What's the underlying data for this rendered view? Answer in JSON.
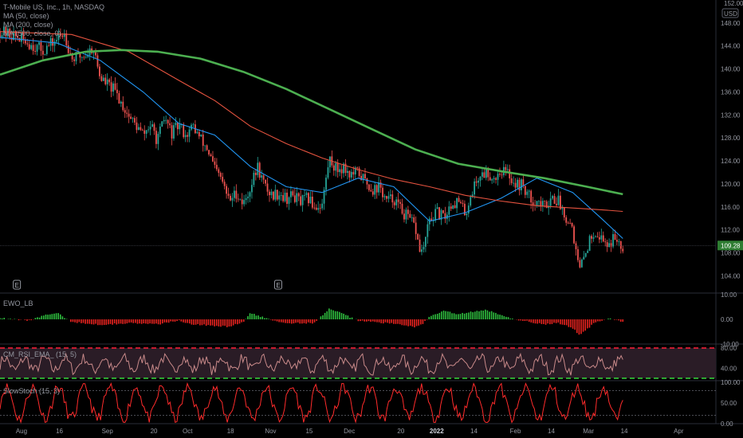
{
  "header": {
    "symbol_line": "T-Mobile US, Inc., 1h, NASDAQ",
    "ma_labels": [
      "MA (50, close)",
      "MA (200, close)",
      "MA (500, close, 0)"
    ],
    "currency": "USD",
    "top_price": "152.00"
  },
  "colors": {
    "up": "#26a69a",
    "down": "#ef5350",
    "ma50": "#2196f3",
    "ma200": "#e5533f",
    "ma500": "#4caf50",
    "ewo_up": "#2fbf3f",
    "ewo_down": "#e8231f",
    "rsi": "#c98a8a",
    "rsi_band": "#2a1c26",
    "stoch": "#ff2b2b",
    "last_price_bg": "#2e7d32"
  },
  "chart_data": [
    {
      "type": "line",
      "pane": "price",
      "title": "T-Mobile US, Inc., 1h, NASDAQ",
      "x": [
        "Aug",
        "16",
        "Sep",
        "20",
        "Oct",
        "18",
        "Nov",
        "15",
        "Dec",
        "20",
        "2022",
        "14",
        "Feb",
        "14",
        "Mar",
        "14",
        "Apr"
      ],
      "ylim": [
        101,
        152
      ],
      "yticks": [
        104,
        108,
        112,
        116,
        120,
        124,
        128,
        132,
        136,
        140,
        144,
        148
      ],
      "last_price": "109.28",
      "price_path": [
        [
          0,
          146.5
        ],
        [
          0.02,
          145.8
        ],
        [
          0.04,
          144.5
        ],
        [
          0.06,
          143.2
        ],
        [
          0.08,
          145.2
        ],
        [
          0.09,
          146.3
        ],
        [
          0.1,
          141.8
        ],
        [
          0.12,
          142.5
        ],
        [
          0.13,
          143.8
        ],
        [
          0.14,
          138.5
        ],
        [
          0.16,
          136.2
        ],
        [
          0.18,
          131.8
        ],
        [
          0.2,
          128.5
        ],
        [
          0.21,
          130.2
        ],
        [
          0.22,
          127.5
        ],
        [
          0.23,
          131.5
        ],
        [
          0.24,
          128.8
        ],
        [
          0.25,
          130.2
        ],
        [
          0.26,
          128.5
        ],
        [
          0.27,
          130.0
        ],
        [
          0.28,
          127.8
        ],
        [
          0.29,
          126.0
        ],
        [
          0.3,
          122.5
        ],
        [
          0.31,
          120.5
        ],
        [
          0.32,
          117.0
        ],
        [
          0.33,
          118.5
        ],
        [
          0.34,
          116.5
        ],
        [
          0.35,
          119.5
        ],
        [
          0.36,
          123.0
        ],
        [
          0.37,
          119.5
        ],
        [
          0.38,
          118.0
        ],
        [
          0.39,
          118.5
        ],
        [
          0.4,
          117.5
        ],
        [
          0.41,
          118.0
        ],
        [
          0.42,
          116.8
        ],
        [
          0.43,
          117.5
        ],
        [
          0.44,
          116.0
        ],
        [
          0.45,
          116.5
        ],
        [
          0.46,
          124.5
        ],
        [
          0.47,
          122.5
        ],
        [
          0.48,
          123.0
        ],
        [
          0.49,
          121.5
        ],
        [
          0.5,
          122.0
        ],
        [
          0.51,
          120.5
        ],
        [
          0.52,
          119.0
        ],
        [
          0.53,
          119.5
        ],
        [
          0.54,
          117.0
        ],
        [
          0.55,
          117.5
        ],
        [
          0.56,
          115.5
        ],
        [
          0.57,
          114.0
        ],
        [
          0.58,
          112.5
        ],
        [
          0.585,
          109.0
        ],
        [
          0.59,
          108.0
        ],
        [
          0.6,
          113.5
        ],
        [
          0.61,
          115.0
        ],
        [
          0.62,
          114.0
        ],
        [
          0.63,
          116.5
        ],
        [
          0.64,
          117.0
        ],
        [
          0.65,
          114.8
        ],
        [
          0.66,
          119.0
        ],
        [
          0.67,
          121.5
        ],
        [
          0.68,
          122.0
        ],
        [
          0.69,
          121.0
        ],
        [
          0.7,
          122.5
        ],
        [
          0.71,
          121.8
        ],
        [
          0.72,
          120.0
        ],
        [
          0.73,
          119.8
        ],
        [
          0.74,
          117.5
        ],
        [
          0.75,
          117.0
        ],
        [
          0.76,
          116.0
        ],
        [
          0.77,
          117.8
        ],
        [
          0.78,
          117.0
        ],
        [
          0.79,
          114.5
        ],
        [
          0.8,
          112.5
        ],
        [
          0.805,
          107.5
        ],
        [
          0.81,
          105.0
        ],
        [
          0.82,
          109.0
        ],
        [
          0.83,
          112.0
        ],
        [
          0.84,
          110.5
        ],
        [
          0.85,
          109.5
        ],
        [
          0.86,
          110.8
        ],
        [
          0.87,
          109.3
        ]
      ],
      "series": [
        {
          "name": "MA (50, close)",
          "values": [
            [
              0,
              145.5
            ],
            [
              0.08,
              144.5
            ],
            [
              0.14,
              141.5
            ],
            [
              0.2,
              136.0
            ],
            [
              0.25,
              130.5
            ],
            [
              0.3,
              128.5
            ],
            [
              0.35,
              123.0
            ],
            [
              0.4,
              119.5
            ],
            [
              0.45,
              118.5
            ],
            [
              0.5,
              121.0
            ],
            [
              0.55,
              119.5
            ],
            [
              0.6,
              113.5
            ],
            [
              0.65,
              115.0
            ],
            [
              0.7,
              117.5
            ],
            [
              0.75,
              121.0
            ],
            [
              0.8,
              118.5
            ],
            [
              0.84,
              114.0
            ],
            [
              0.87,
              110.5
            ]
          ]
        },
        {
          "name": "MA (200, close)",
          "values": [
            [
              0,
              146.5
            ],
            [
              0.1,
              146.0
            ],
            [
              0.18,
              143.0
            ],
            [
              0.25,
              138.0
            ],
            [
              0.3,
              134.5
            ],
            [
              0.35,
              130.0
            ],
            [
              0.4,
              127.0
            ],
            [
              0.45,
              124.5
            ],
            [
              0.5,
              122.5
            ],
            [
              0.55,
              120.8
            ],
            [
              0.6,
              119.5
            ],
            [
              0.65,
              118.0
            ],
            [
              0.7,
              117.0
            ],
            [
              0.75,
              116.2
            ],
            [
              0.8,
              115.8
            ],
            [
              0.84,
              115.5
            ],
            [
              0.87,
              115.2
            ]
          ]
        },
        {
          "name": "MA (500, close, 0)",
          "values": [
            [
              0,
              139.0
            ],
            [
              0.06,
              141.5
            ],
            [
              0.12,
              143.0
            ],
            [
              0.17,
              143.3
            ],
            [
              0.22,
              143.0
            ],
            [
              0.28,
              141.8
            ],
            [
              0.34,
              139.5
            ],
            [
              0.4,
              136.5
            ],
            [
              0.46,
              133.0
            ],
            [
              0.52,
              129.5
            ],
            [
              0.58,
              126.0
            ],
            [
              0.64,
              123.5
            ],
            [
              0.7,
              122.2
            ],
            [
              0.76,
              121.0
            ],
            [
              0.82,
              119.5
            ],
            [
              0.87,
              118.2
            ]
          ]
        }
      ]
    },
    {
      "type": "area",
      "pane": "ewo",
      "title": "EWO_LB",
      "ylim": [
        -10,
        10
      ],
      "yticks": [
        "10.00",
        "0.00",
        "-10.00"
      ],
      "values": [
        [
          0,
          0.5
        ],
        [
          0.04,
          -0.5
        ],
        [
          0.06,
          1.5
        ],
        [
          0.08,
          2.5
        ],
        [
          0.1,
          -1.0
        ],
        [
          0.14,
          -2.2
        ],
        [
          0.18,
          -1.5
        ],
        [
          0.22,
          -2.0
        ],
        [
          0.25,
          -0.5
        ],
        [
          0.27,
          -2.0
        ],
        [
          0.3,
          -2.6
        ],
        [
          0.32,
          -3.0
        ],
        [
          0.34,
          -1.0
        ],
        [
          0.35,
          2.5
        ],
        [
          0.37,
          0.5
        ],
        [
          0.4,
          -1.5
        ],
        [
          0.44,
          -1.5
        ],
        [
          0.46,
          4.5
        ],
        [
          0.48,
          2.0
        ],
        [
          0.5,
          -0.5
        ],
        [
          0.54,
          -1.5
        ],
        [
          0.58,
          -3.0
        ],
        [
          0.59,
          -2.0
        ],
        [
          0.6,
          1.0
        ],
        [
          0.62,
          3.5
        ],
        [
          0.64,
          2.0
        ],
        [
          0.66,
          3.0
        ],
        [
          0.68,
          3.8
        ],
        [
          0.7,
          1.5
        ],
        [
          0.72,
          0.0
        ],
        [
          0.74,
          -1.0
        ],
        [
          0.76,
          -2.0
        ],
        [
          0.78,
          -1.5
        ],
        [
          0.8,
          -3.5
        ],
        [
          0.81,
          -6.5
        ],
        [
          0.83,
          -1.5
        ],
        [
          0.85,
          0.5
        ],
        [
          0.87,
          -1.0
        ]
      ]
    },
    {
      "type": "line",
      "pane": "rsi",
      "title": "CM_RSI_EMA_ (15, 5)",
      "ylim": [
        10,
        80
      ],
      "yticks": [
        "80.00",
        "40.00"
      ],
      "upper_band": 80,
      "lower_band": 20,
      "seed": 7
    },
    {
      "type": "line",
      "pane": "stoch",
      "title": "SlowStoch (15, 3)",
      "ylim": [
        0,
        100
      ],
      "yticks": [
        "100.00",
        "50.00",
        "0.00"
      ],
      "upper_band": 80,
      "lower_band": 20,
      "seed": 11
    }
  ],
  "xaxis": {
    "labels": [
      "Aug",
      "16",
      "Sep",
      "20",
      "Oct",
      "18",
      "Nov",
      "15",
      "Dec",
      "20",
      "2022",
      "14",
      "Feb",
      "14",
      "Mar",
      "14",
      "Apr"
    ],
    "positions": [
      0.03,
      0.083,
      0.15,
      0.215,
      0.262,
      0.322,
      0.378,
      0.432,
      0.488,
      0.56,
      0.61,
      0.662,
      0.72,
      0.77,
      0.822,
      0.872,
      0.948
    ]
  },
  "earnings_markers": [
    {
      "label": "E",
      "x": 0.023
    },
    {
      "label": "E",
      "x": 0.388
    }
  ]
}
